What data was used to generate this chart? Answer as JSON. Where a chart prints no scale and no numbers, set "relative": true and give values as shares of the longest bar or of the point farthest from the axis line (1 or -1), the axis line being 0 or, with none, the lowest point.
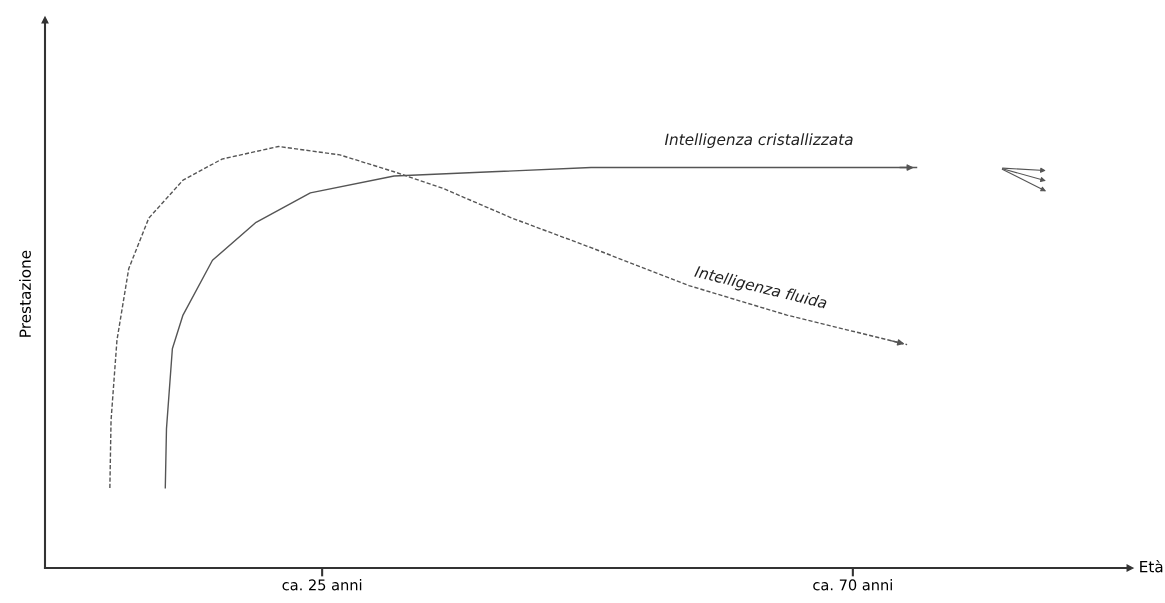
{
  "chart_data": {
    "type": "line",
    "relative": true,
    "xlabel": "Età",
    "ylabel": "Prestazione",
    "xlim": [
      1.5,
      93.5
    ],
    "xticks": [
      {
        "value": 25,
        "label": "ca. 25 anni"
      },
      {
        "value": 70,
        "label": "ca. 70 anni"
      }
    ],
    "grid": false,
    "legend": false,
    "marker": "none",
    "series": [
      {
        "name": "Intelligenza fluida",
        "color": "#555555",
        "line_style": "dashed",
        "x": [
          7.0,
          7.1,
          7.6,
          8.6,
          10.3,
          13.2,
          16.5,
          21.3,
          26.5,
          31.1,
          35.3,
          41.1,
          47.8,
          56.1,
          64.4,
          74.6
        ],
        "values": [
          0.19,
          0.35,
          0.54,
          0.71,
          0.83,
          0.92,
          0.97,
          1.0,
          0.98,
          0.94,
          0.9,
          0.83,
          0.76,
          0.67,
          0.6,
          0.53
        ]
      },
      {
        "name": "Intelligenza cristallizzata",
        "color": "#555555",
        "line_style": "solid",
        "x": [
          11.7,
          11.8,
          12.3,
          13.2,
          15.7,
          19.4,
          24.0,
          31.1,
          39.4,
          47.8,
          56.1,
          64.4,
          75.4
        ],
        "values": [
          0.19,
          0.33,
          0.52,
          0.6,
          0.73,
          0.82,
          0.89,
          0.93,
          0.94,
          0.95,
          0.95,
          0.95,
          0.95
        ]
      }
    ]
  }
}
